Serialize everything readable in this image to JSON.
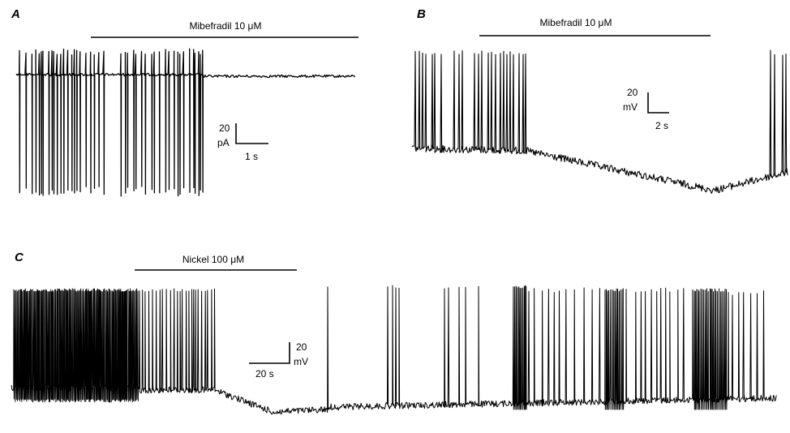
{
  "panels": [
    {
      "id": "A",
      "letter": "A",
      "drug_label": "Mibefradil 10 μM",
      "scale_y_value": "20",
      "scale_y_unit": "pA",
      "scale_x_label": "1 s"
    },
    {
      "id": "B",
      "letter": "B",
      "drug_label": "Mibefradil 10 μM",
      "scale_y_value": "20",
      "scale_y_unit": "mV",
      "scale_x_label": "2 s"
    },
    {
      "id": "C",
      "letter": "C",
      "drug_label": "Nickel 100 μM",
      "scale_y_value": "20",
      "scale_y_unit": "mV",
      "scale_x_label": "20 s"
    }
  ]
}
